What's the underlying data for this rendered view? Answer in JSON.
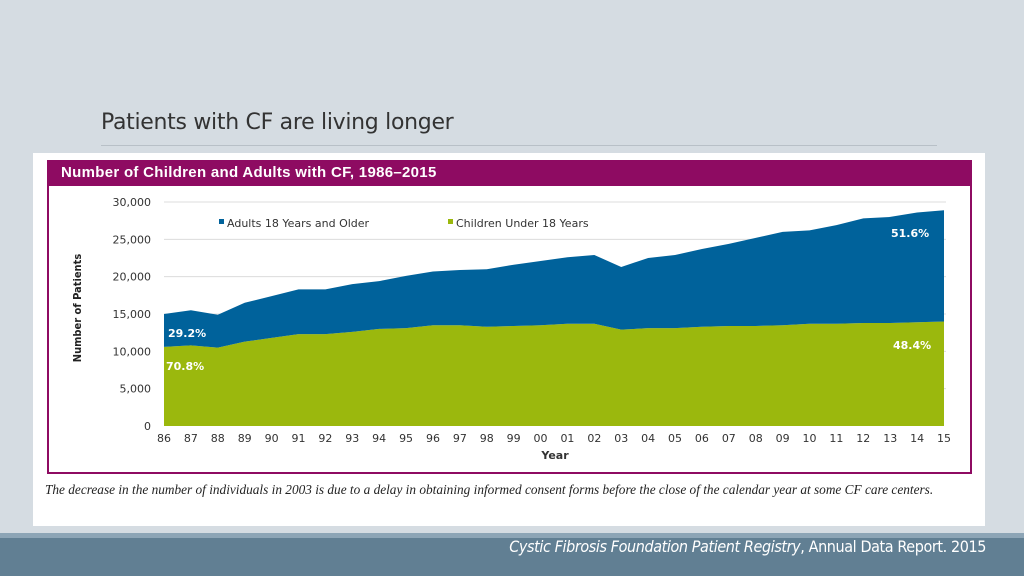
{
  "slide": {
    "title": "Patients with CF are living longer",
    "footnote": "The decrease in the number of individuals in 2003 is due to a delay in obtaining informed consent forms before the close of the calendar year at some CF care centers.",
    "source_italic": "Cystic Fibrosis Foundation Patient Registry",
    "source_rest": ", Annual Data Report. 2015"
  },
  "colors": {
    "adults": "#00629b",
    "children": "#9bb80d",
    "header": "#8e0b62",
    "background": "#d5dce2",
    "footer": "#617f93"
  },
  "chart_data": {
    "type": "area",
    "stacked": true,
    "title": "Number of Children and Adults with CF, 1986–2015",
    "xlabel": "Year",
    "ylabel": "Number of Patients",
    "ylim": [
      0,
      30000
    ],
    "yticks": [
      "0",
      "5,000",
      "10,000",
      "15,000",
      "20,000",
      "25,000",
      "30,000"
    ],
    "grid": true,
    "legend_position": "top",
    "categories": [
      "86",
      "87",
      "88",
      "89",
      "90",
      "91",
      "92",
      "93",
      "94",
      "95",
      "96",
      "97",
      "98",
      "99",
      "00",
      "01",
      "02",
      "03",
      "04",
      "05",
      "06",
      "07",
      "08",
      "09",
      "10",
      "11",
      "12",
      "13",
      "14",
      "15"
    ],
    "series": [
      {
        "name": "Children Under 18 Years",
        "color": "#9bb80d",
        "values": [
          10600,
          10800,
          10500,
          11300,
          11800,
          12300,
          12300,
          12600,
          13000,
          13100,
          13500,
          13500,
          13300,
          13400,
          13500,
          13700,
          13700,
          12900,
          13100,
          13100,
          13300,
          13400,
          13400,
          13500,
          13700,
          13700,
          13800,
          13800,
          13900,
          14000
        ]
      },
      {
        "name": "Adults 18 Years and Older",
        "color": "#00629b",
        "values": [
          4400,
          4700,
          4400,
          5200,
          5600,
          6000,
          6000,
          6400,
          6400,
          7000,
          7200,
          7400,
          7700,
          8200,
          8600,
          8900,
          9200,
          8400,
          9400,
          9800,
          10400,
          11000,
          11800,
          12500,
          12500,
          13200,
          14000,
          14200,
          14700,
          14900
        ]
      }
    ],
    "annotations": {
      "adults_start": "29.2%",
      "children_start": "70.8%",
      "adults_end": "51.6%",
      "children_end": "48.4%"
    }
  }
}
